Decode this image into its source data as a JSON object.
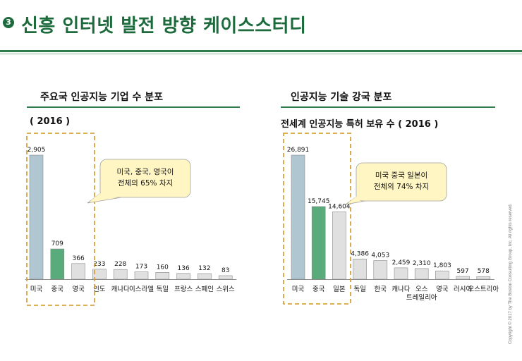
{
  "header": {
    "number": "3",
    "title": "신흥 인터넷 발전 방향 케이스스터디"
  },
  "copyright": "Copyright © 2017 by The Boston Consulting Group, Inc. All rights reserved.",
  "left": {
    "section_title": "주요국 인공지능 기업 수 분포",
    "subtitle": "( 2016 )",
    "callout": [
      "미국, 중국, 영국이",
      "전체의 65% 차지"
    ]
  },
  "right": {
    "section_title": "인공지능 기술 강국 분포",
    "subtitle": "전세계 인공지능 특허 보유 수 ( 2016 )",
    "callout": [
      "미국 중국 일본이",
      "전체의 74% 차지"
    ]
  },
  "colors": {
    "us": "#b0c6d0",
    "cn": "#5aab7c",
    "other": "#e0e0e0",
    "accent": "#1d6b3c",
    "callout": "#fff6c4",
    "dash": "#d9a23a"
  },
  "chart_data": [
    {
      "type": "bar",
      "title": "주요국 인공지능 기업 수 분포",
      "categories": [
        [
          "미국"
        ],
        [
          "중국"
        ],
        [
          "영국"
        ],
        [
          "인도"
        ],
        [
          "캐나다"
        ],
        [
          "이스라엘"
        ],
        [
          "독일"
        ],
        [
          "프랑스"
        ],
        [
          "스페인"
        ],
        [
          "스위스"
        ]
      ],
      "values": [
        2905,
        709,
        366,
        233,
        228,
        173,
        160,
        136,
        132,
        83
      ],
      "value_labels": [
        "2,905",
        "709",
        "366",
        "233",
        "228",
        "173",
        "160",
        "136",
        "132",
        "83"
      ],
      "ylim": [
        0,
        2905
      ]
    },
    {
      "type": "bar",
      "title": "전세계 인공지능 특허 보유 수",
      "categories": [
        [
          "미국"
        ],
        [
          "중국"
        ],
        [
          "일본"
        ],
        [
          "독일"
        ],
        [
          "한국"
        ],
        [
          "캐나다"
        ],
        [
          "오스",
          "트레일리아"
        ],
        [
          "영국"
        ],
        [
          "러시아"
        ],
        [
          "오스트리아"
        ]
      ],
      "values": [
        26891,
        15745,
        14604,
        4386,
        4053,
        2459,
        2310,
        1803,
        597,
        578
      ],
      "value_labels": [
        "26,891",
        "15,745",
        "14,604",
        "4,386",
        "4,053",
        "2,459",
        "2,310",
        "1,803",
        "597",
        "578"
      ],
      "ylim": [
        0,
        26891
      ]
    }
  ]
}
